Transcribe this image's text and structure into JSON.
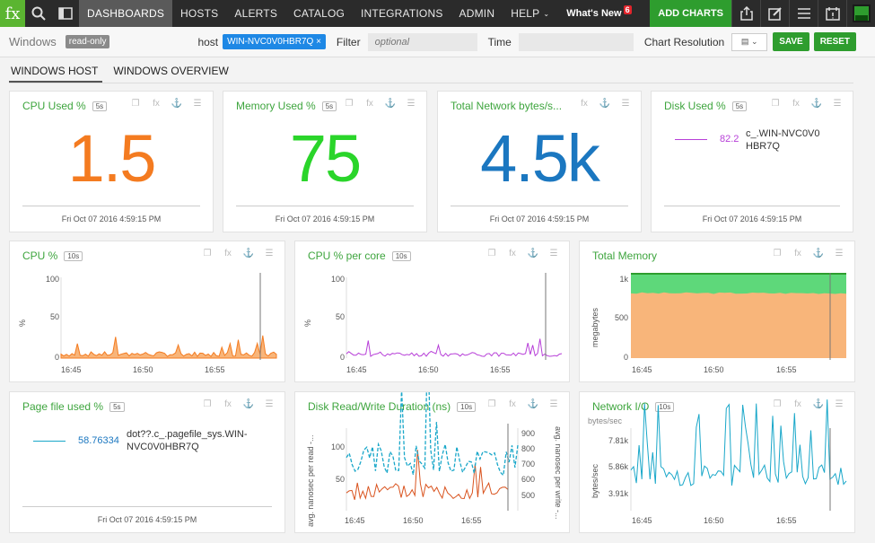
{
  "topbar": {
    "logo": "fx",
    "nav": [
      "DASHBOARDS",
      "HOSTS",
      "ALERTS",
      "CATALOG",
      "INTEGRATIONS",
      "ADMIN",
      "HELP"
    ],
    "whats_new": "What's New",
    "whats_new_count": "6",
    "add_charts": "ADD CHARTS"
  },
  "filterbar": {
    "title": "Windows",
    "readonly": "read-only",
    "host_label": "host",
    "host_value": "WIN-NVC0V0HBR7Q",
    "filter_label": "Filter",
    "filter_placeholder": "optional",
    "time_label": "Time",
    "res_label": "Chart Resolution",
    "save": "SAVE",
    "reset": "RESET"
  },
  "tabs": [
    "WINDOWS HOST",
    "WINDOWS OVERVIEW"
  ],
  "timestamp": "Fri Oct 07 2016 4:59:15 PM",
  "colors": {
    "green": "#2ad52a",
    "orange": "#f47b20",
    "blue": "#1b77c0",
    "purple": "#b73fd8",
    "cyan": "#19a7c9",
    "title": "#3ea53e"
  },
  "cards": {
    "cpu_used": {
      "title": "CPU Used %",
      "res": "5s",
      "value": "1.5"
    },
    "mem_used": {
      "title": "Memory Used %",
      "res": "5s",
      "value": "75"
    },
    "net_bytes": {
      "title": "Total Network bytes/s...",
      "res": "",
      "value": "4.5k"
    },
    "disk_used": {
      "title": "Disk Used %",
      "res": "5s",
      "value": "82.2",
      "series": "c_.WIN-NVC0V0HBR7Q"
    },
    "cpu_pct": {
      "title": "CPU %",
      "res": "10s",
      "ylabel": "%",
      "yticks": [
        "100",
        "50",
        "0"
      ],
      "xticks": [
        "16:45",
        "16:50",
        "16:55"
      ]
    },
    "cpu_core": {
      "title": "CPU % per core",
      "res": "10s",
      "ylabel": "%",
      "yticks": [
        "100",
        "50",
        "0"
      ],
      "xticks": [
        "16:45",
        "16:50",
        "16:55"
      ]
    },
    "total_mem": {
      "title": "Total Memory",
      "res": "",
      "ylabel": "megabytes",
      "yticks": [
        "1k",
        "500",
        "0"
      ],
      "xticks": [
        "16:45",
        "16:50",
        "16:55"
      ]
    },
    "page_file": {
      "title": "Page file used %",
      "res": "5s",
      "value": "58.76334",
      "series": "dot??.c_.pagefile_sys.WIN-NVC0V0HBR7Q"
    },
    "disk_rw": {
      "title": "Disk Read/Write Duration (ns)",
      "res": "10s",
      "ylabel_left": "avg. nanosec per read -...",
      "ylabel_right": "avg. nanosec per write -...",
      "yticks_left": [
        "100",
        "50"
      ],
      "yticks_right": [
        "900",
        "800",
        "700",
        "600",
        "500"
      ],
      "xticks": [
        "16:45",
        "16:50",
        "16:55"
      ]
    },
    "net_io": {
      "title": "Network I/O",
      "res": "10s",
      "unit": "bytes/sec",
      "ylabel": "bytes/sec",
      "yticks": [
        "7.81k",
        "5.86k",
        "3.91k"
      ],
      "xticks": [
        "16:45",
        "16:50",
        "16:55"
      ]
    }
  }
}
